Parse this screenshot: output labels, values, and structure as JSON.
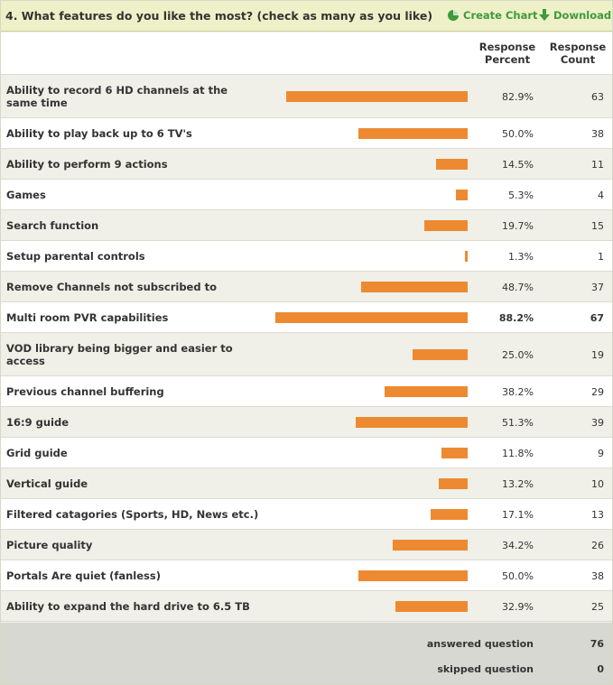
{
  "question": {
    "title": "4. What features do you like the most? (check as many as you like)",
    "create_chart_label": "Create Chart",
    "download_label": "Download"
  },
  "columns": {
    "percent": [
      "Response",
      "Percent"
    ],
    "count": [
      "Response",
      "Count"
    ]
  },
  "colors": {
    "bar": "#ed8a31",
    "link": "#3f9a3a",
    "header_bg": "#eef0c8"
  },
  "chart_data": {
    "type": "bar",
    "orientation": "horizontal",
    "categories": [
      "Ability to record 6 HD channels at the same time",
      "Ability to play back up to 6 TV's",
      "Ability to perform 9 actions",
      "Games",
      "Search function",
      "Setup parental controls",
      "Remove Channels not subscribed to",
      "Multi room PVR capabilities",
      "VOD library being bigger and easier to access",
      "Previous channel buffering",
      "16:9 guide",
      "Grid guide",
      "Vertical guide",
      "Filtered catagories (Sports, HD, News etc.)",
      "Picture quality",
      "Portals Are quiet (fanless)",
      "Ability to expand the hard drive to 6.5 TB"
    ],
    "values": [
      82.9,
      50.0,
      14.5,
      5.3,
      19.7,
      1.3,
      48.7,
      88.2,
      25.0,
      38.2,
      51.3,
      11.8,
      13.2,
      17.1,
      34.2,
      50.0,
      32.9
    ],
    "percent_labels": [
      "82.9%",
      "50.0%",
      "14.5%",
      "5.3%",
      "19.7%",
      "1.3%",
      "48.7%",
      "88.2%",
      "25.0%",
      "38.2%",
      "51.3%",
      "11.8%",
      "13.2%",
      "17.1%",
      "34.2%",
      "50.0%",
      "32.9%"
    ],
    "counts": [
      63,
      38,
      11,
      4,
      15,
      1,
      37,
      67,
      19,
      29,
      39,
      9,
      10,
      13,
      26,
      38,
      25
    ],
    "highlight_index": 7,
    "xlim": [
      0,
      100
    ]
  },
  "footer": {
    "answered_label": "answered question",
    "answered_value": "76",
    "skipped_label": "skipped question",
    "skipped_value": "0"
  }
}
